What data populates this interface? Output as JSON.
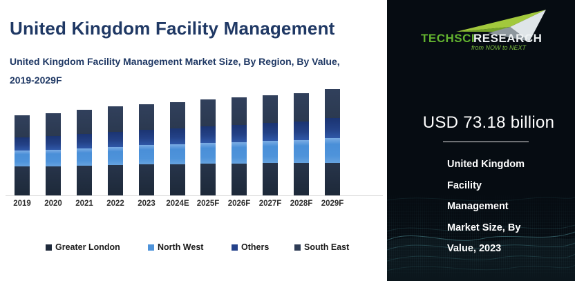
{
  "header": {
    "title": "United Kingdom Facility Management",
    "subtitle_lines": [
      "United Kingdom Facility Management Market Size, By Region, By Value,",
      "2019-2029F"
    ]
  },
  "chart_data": {
    "type": "bar",
    "stacked": true,
    "title": "United Kingdom Facility Management Market Size, By Region, By Value, 2019-2029F",
    "unit": "USD billion",
    "categories": [
      "2019",
      "2020",
      "2021",
      "2022",
      "2023",
      "2024E",
      "2025F",
      "2026F",
      "2027F",
      "2028F",
      "2029F"
    ],
    "series": [
      {
        "name": "Greater London",
        "color": "#1f2a3b",
        "values": [
          23.2,
          23.4,
          23.7,
          24.3,
          24.9,
          25.2,
          25.4,
          25.6,
          25.8,
          25.9,
          26.1
        ]
      },
      {
        "name": "North West",
        "color": "#4e93da",
        "values": [
          12.8,
          13.2,
          13.8,
          14.6,
          15.5,
          16.1,
          16.6,
          17.1,
          17.7,
          18.5,
          19.9
        ]
      },
      {
        "name": "Others",
        "color": "#24418a",
        "values": [
          10.6,
          11.3,
          11.7,
          12.1,
          12.3,
          12.9,
          13.4,
          14.0,
          14.6,
          15.2,
          16.1
        ]
      },
      {
        "name": "South East",
        "color": "#2e3c55",
        "values": [
          17.7,
          18.5,
          19.4,
          20.3,
          20.5,
          21.2,
          21.7,
          22.0,
          22.3,
          22.5,
          23.3
        ]
      }
    ],
    "totals_reference": {
      "2023": 73.18
    },
    "values_estimated_from_pixels": true,
    "ylim": [
      0,
      90
    ],
    "y_axis": "hidden",
    "grid": "off",
    "legend_position": "bottom"
  },
  "panel": {
    "brand": {
      "name_primary": "TechSci",
      "name_secondary": "Research",
      "tagline": "from NOW to NEXT"
    },
    "headline": "USD 73.18 billion",
    "caption_lines": [
      "United Kingdom",
      "Facility",
      "Management",
      "Market Size, By",
      "Value, 2023"
    ]
  },
  "colors": {
    "title_text": "#1f3864",
    "axis_line": "#d9d9d9",
    "x_label_text": "#2e2e2e",
    "panel_background": "#060c12",
    "panel_text": "#ffffff",
    "logo_green": "#62b22f",
    "logo_white": "#eef2f3",
    "mesh_teal": "#3f7077"
  }
}
